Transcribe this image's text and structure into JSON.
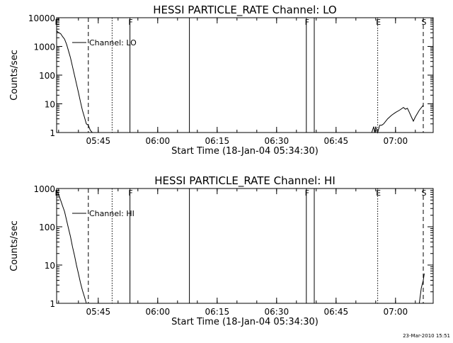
{
  "footer": {
    "timestamp": "23-Mar-2010 15:51"
  },
  "chart_data": [
    {
      "type": "line",
      "title": "HESSI PARTICLE_RATE Channel: LO",
      "xlabel": "Start Time (18-Jan-04 05:34:30)",
      "ylabel": "Counts/sec",
      "y_scale": "log",
      "ylim": [
        1,
        10000
      ],
      "y_ticks": [
        1,
        10,
        100,
        1000,
        10000
      ],
      "y_tick_labels": [
        "1",
        "10",
        "100",
        "1000",
        "10000"
      ],
      "xlim": [
        "05:34:30",
        "07:09:30"
      ],
      "x_ticks": [
        "05:45",
        "06:00",
        "06:15",
        "06:30",
        "06:45",
        "07:00"
      ],
      "legend": {
        "entries": [
          "Channel: LO"
        ],
        "placement": "top-left"
      },
      "grid": false,
      "markers": [
        {
          "time": "05:34:30",
          "label": "E",
          "style": "none"
        },
        {
          "time": "05:42:30",
          "label": "",
          "style": "dashed"
        },
        {
          "time": "05:48:30",
          "label": "",
          "style": "dotted"
        },
        {
          "time": "05:53:00",
          "label": "F",
          "style": "solid"
        },
        {
          "time": "06:08:00",
          "label": "",
          "style": "solid"
        },
        {
          "time": "06:37:30",
          "label": "F",
          "style": "solid"
        },
        {
          "time": "06:39:30",
          "label": "",
          "style": "solid"
        },
        {
          "time": "06:55:30",
          "label": "E",
          "style": "dotted"
        },
        {
          "time": "07:07:00",
          "label": "S",
          "style": "dashed"
        }
      ],
      "series": [
        {
          "name": "Channel: LO",
          "segments": [
            [
              [
                "05:34:30",
                3500
              ],
              [
                "05:35:00",
                3000
              ],
              [
                "05:35:30",
                2800
              ],
              [
                "05:36:00",
                2200
              ],
              [
                "05:36:30",
                1800
              ],
              [
                "05:37:00",
                1200
              ],
              [
                "05:37:30",
                700
              ],
              [
                "05:38:00",
                400
              ],
              [
                "05:38:30",
                200
              ],
              [
                "05:39:00",
                100
              ],
              [
                "05:39:30",
                50
              ],
              [
                "05:40:00",
                25
              ],
              [
                "05:40:30",
                12
              ],
              [
                "05:41:00",
                6
              ],
              [
                "05:41:30",
                3.5
              ],
              [
                "05:42:00",
                2
              ],
              [
                "05:42:30",
                1.8
              ],
              [
                "05:43:00",
                1.2
              ],
              [
                "05:43:30",
                1
              ]
            ],
            [
              [
                "06:54:00",
                1
              ],
              [
                "06:54:30",
                1.6
              ],
              [
                "06:54:45",
                1
              ],
              [
                "06:55:00",
                1.6
              ],
              [
                "06:55:30",
                1
              ],
              [
                "06:56:00",
                1.8
              ],
              [
                "06:56:30",
                1.8
              ],
              [
                "06:57:00",
                2
              ],
              [
                "06:58:00",
                3
              ],
              [
                "06:59:00",
                4
              ],
              [
                "07:00:00",
                5
              ],
              [
                "07:01:00",
                6
              ],
              [
                "07:02:00",
                7.5
              ],
              [
                "07:02:30",
                6.5
              ],
              [
                "07:03:00",
                7
              ],
              [
                "07:03:30",
                5
              ],
              [
                "07:04:00",
                3.5
              ],
              [
                "07:04:30",
                2.5
              ],
              [
                "07:05:00",
                3.5
              ],
              [
                "07:06:00",
                6
              ],
              [
                "07:07:00",
                9
              ]
            ]
          ]
        }
      ]
    },
    {
      "type": "line",
      "title": "HESSI PARTICLE_RATE Channel: HI",
      "xlabel": "Start Time (18-Jan-04 05:34:30)",
      "ylabel": "Counts/sec",
      "y_scale": "log",
      "ylim": [
        1,
        1000
      ],
      "y_ticks": [
        1,
        10,
        100,
        1000
      ],
      "y_tick_labels": [
        "1",
        "10",
        "100",
        "1000"
      ],
      "xlim": [
        "05:34:30",
        "07:09:30"
      ],
      "x_ticks": [
        "05:45",
        "06:00",
        "06:15",
        "06:30",
        "06:45",
        "07:00"
      ],
      "legend": {
        "entries": [
          "Channel: HI"
        ],
        "placement": "top-left"
      },
      "grid": false,
      "markers": [
        {
          "time": "05:34:30",
          "label": "E",
          "style": "none"
        },
        {
          "time": "05:42:30",
          "label": "",
          "style": "dashed"
        },
        {
          "time": "05:48:30",
          "label": "",
          "style": "dotted"
        },
        {
          "time": "05:53:00",
          "label": "F",
          "style": "solid"
        },
        {
          "time": "06:08:00",
          "label": "",
          "style": "solid"
        },
        {
          "time": "06:37:30",
          "label": "F",
          "style": "solid"
        },
        {
          "time": "06:39:30",
          "label": "",
          "style": "solid"
        },
        {
          "time": "06:55:30",
          "label": "E",
          "style": "dotted"
        },
        {
          "time": "07:07:00",
          "label": "S",
          "style": "dashed"
        }
      ],
      "series": [
        {
          "name": "Channel: HI",
          "segments": [
            [
              [
                "05:34:30",
                900
              ],
              [
                "05:35:00",
                700
              ],
              [
                "05:35:30",
                500
              ],
              [
                "05:36:00",
                350
              ],
              [
                "05:36:30",
                250
              ],
              [
                "05:37:00",
                150
              ],
              [
                "05:37:30",
                90
              ],
              [
                "05:38:00",
                55
              ],
              [
                "05:38:30",
                30
              ],
              [
                "05:39:00",
                18
              ],
              [
                "05:39:30",
                10
              ],
              [
                "05:40:00",
                6
              ],
              [
                "05:40:30",
                3.5
              ],
              [
                "05:41:00",
                2.2
              ],
              [
                "05:41:30",
                1.5
              ],
              [
                "05:42:00",
                1
              ]
            ],
            [
              [
                "07:06:00",
                1
              ],
              [
                "07:06:30",
                2.5
              ],
              [
                "07:07:00",
                4
              ],
              [
                "07:07:15",
                6
              ]
            ]
          ]
        }
      ]
    }
  ]
}
